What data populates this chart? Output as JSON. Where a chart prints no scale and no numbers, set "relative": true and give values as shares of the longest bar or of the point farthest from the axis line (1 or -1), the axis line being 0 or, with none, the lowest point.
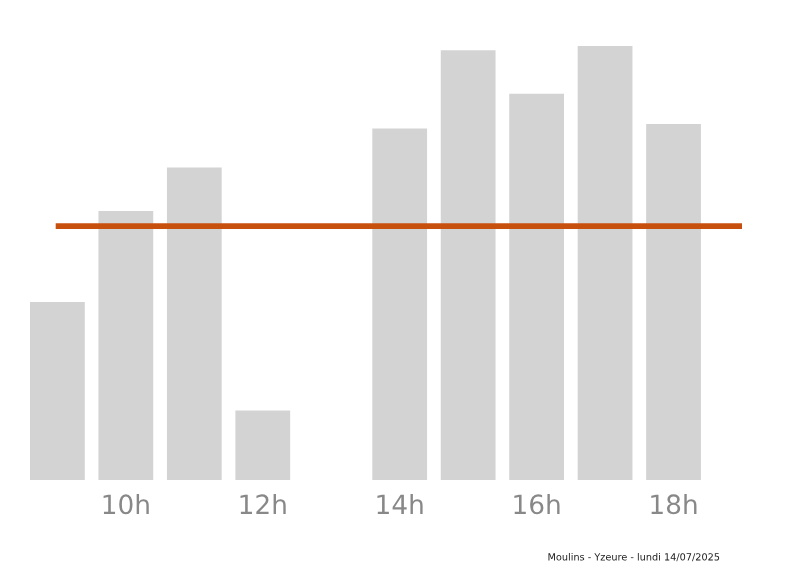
{
  "chart_data": {
    "type": "bar",
    "relative": true,
    "categories": [
      null,
      "10h",
      null,
      "12h",
      null,
      "14h",
      null,
      "16h",
      null,
      "18h"
    ],
    "values": [
      0.41,
      0.62,
      0.72,
      0.16,
      0,
      0.81,
      0.99,
      0.89,
      1.0,
      0.82
    ],
    "color": "#d3d3d3",
    "ref_lines": [
      {
        "axis": "y",
        "value": 0.585,
        "color": "#c8500f"
      }
    ],
    "annotations": [
      "Moulins - Yzeure - lundi 14/07/2025"
    ],
    "grid": false,
    "legend": false
  }
}
